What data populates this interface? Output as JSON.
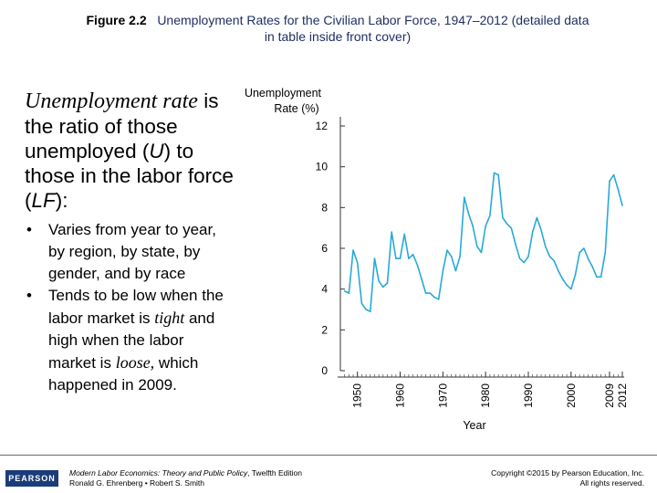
{
  "header": {
    "figure_label": "Figure 2.2",
    "figure_title_line1": "Unemployment Rates for the Civilian Labor Force, 1947–2012 (detailed data",
    "figure_title_line2": "in table inside front cover)"
  },
  "lead": {
    "term": "Unemployment rate",
    "t1": " is the ratio of those unemployed (",
    "u": "U",
    "t2": ") to those in the labor force (",
    "lf": "LF",
    "t3": "):"
  },
  "bullets": [
    {
      "text": "Varies from year to year, by region, by state, by gender, and by race"
    },
    {
      "p1": "Tends to be low when the labor market is ",
      "tight": "tight",
      "p2": " and high when the labor market is ",
      "loose": "loose,",
      "p3": " which happened in 2009."
    }
  ],
  "footer": {
    "logo": "PEARSON",
    "book_title": "Modern Labor Economics: Theory and Public Policy",
    "edition": ", Twelfth Edition",
    "authors": "Ronald G. Ehrenberg • Robert S. Smith",
    "copyright1": "Copyright ©2015 by Pearson Education, Inc.",
    "copyright2": "All rights reserved."
  },
  "chart_data": {
    "type": "line",
    "title": "",
    "ylabel_line1": "Unemployment",
    "ylabel_line2": "Rate (%)",
    "xlabel": "Year",
    "ylim": [
      0,
      12
    ],
    "yticks": [
      0,
      2,
      4,
      6,
      8,
      10,
      12
    ],
    "xlim": [
      1946,
      2012
    ],
    "xticks": [
      1950,
      1960,
      1970,
      1980,
      1990,
      2000,
      2009,
      2012
    ],
    "line_color": "#29a9d8",
    "x": [
      1947,
      1948,
      1949,
      1950,
      1951,
      1952,
      1953,
      1954,
      1955,
      1956,
      1957,
      1958,
      1959,
      1960,
      1961,
      1962,
      1963,
      1964,
      1965,
      1966,
      1967,
      1968,
      1969,
      1970,
      1971,
      1972,
      1973,
      1974,
      1975,
      1976,
      1977,
      1978,
      1979,
      1980,
      1981,
      1982,
      1983,
      1984,
      1985,
      1986,
      1987,
      1988,
      1989,
      1990,
      1991,
      1992,
      1993,
      1994,
      1995,
      1996,
      1997,
      1998,
      1999,
      2000,
      2001,
      2002,
      2003,
      2004,
      2005,
      2006,
      2007,
      2008,
      2009,
      2010,
      2011,
      2012
    ],
    "y": [
      3.9,
      3.8,
      5.9,
      5.3,
      3.3,
      3.0,
      2.9,
      5.5,
      4.4,
      4.1,
      4.3,
      6.8,
      5.5,
      5.5,
      6.7,
      5.5,
      5.7,
      5.2,
      4.5,
      3.8,
      3.8,
      3.6,
      3.5,
      4.9,
      5.9,
      5.6,
      4.9,
      5.6,
      8.5,
      7.7,
      7.1,
      6.1,
      5.8,
      7.1,
      7.6,
      9.7,
      9.6,
      7.5,
      7.2,
      7.0,
      6.2,
      5.5,
      5.3,
      5.6,
      6.8,
      7.5,
      6.9,
      6.1,
      5.6,
      5.4,
      4.9,
      4.5,
      4.2,
      4.0,
      4.7,
      5.8,
      6.0,
      5.5,
      5.1,
      4.6,
      4.6,
      5.8,
      9.3,
      9.6,
      8.9,
      8.1
    ]
  }
}
